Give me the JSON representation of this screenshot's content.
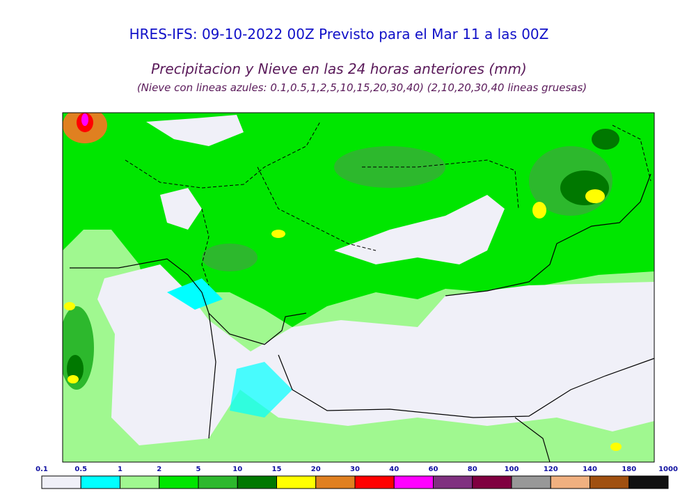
{
  "header": {
    "title": "HRES-IFS: 09-10-2022 00Z Previsto para el Mar 11 a las 00Z",
    "subtitle": "Precipitacion y Nieve en las 24 horas anteriores (mm)",
    "note": "(Nieve con lineas azules: 0.1,0.5,1,2,5,10,15,20,30,40)  (2,10,20,30,40 lineas gruesas)"
  },
  "legend": {
    "labels": [
      "0.1",
      "0.5",
      "1",
      "2",
      "5",
      "10",
      "15",
      "20",
      "30",
      "40",
      "60",
      "80",
      "100",
      "120",
      "140",
      "180",
      "1000"
    ],
    "colors": [
      "#f0f0f8",
      "#00ffff",
      "#a0f890",
      "#00e600",
      "#2db82d",
      "#007800",
      "#ffff00",
      "#e08020",
      "#ff0000",
      "#ff00ff",
      "#803080",
      "#800040",
      "#989898",
      "#f0b080",
      "#a05010",
      "#101010"
    ]
  }
}
